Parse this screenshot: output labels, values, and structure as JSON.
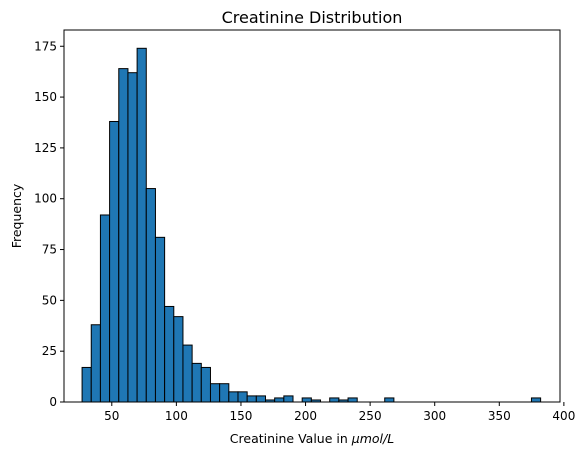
{
  "chart_data": {
    "type": "bar",
    "title": "Creatinine Distribution",
    "xlabel": "Creatinine Value in μmol/L",
    "xlabel_prefix": "Creatinine Value in ",
    "xlabel_math_mu": "μ",
    "xlabel_math_rest": "mol/L",
    "ylabel": "Frequency",
    "xlim": [
      13,
      397
    ],
    "ylim": [
      0,
      183
    ],
    "xticks": [
      50,
      100,
      150,
      200,
      250,
      300,
      350,
      400
    ],
    "yticks": [
      0,
      25,
      50,
      75,
      100,
      125,
      150,
      175
    ],
    "bin_edges": [
      27,
      34.1,
      41.2,
      48.3,
      55.4,
      62.5,
      69.6,
      76.7,
      83.8,
      90.9,
      98.0,
      105.1,
      112.2,
      119.3,
      126.4,
      133.5,
      140.6,
      147.7,
      154.8,
      161.9,
      169.0,
      176.1,
      183.2,
      190.3,
      197.4,
      204.5,
      211.6,
      218.7,
      225.8,
      232.9,
      240.0,
      247.1,
      254.2,
      261.3,
      268.4,
      275.5,
      282.6,
      289.7,
      296.8,
      303.9,
      311.0,
      318.1,
      325.2,
      332.3,
      339.4,
      346.5,
      353.6,
      360.7,
      367.8,
      374.9,
      382.0
    ],
    "counts": [
      17,
      38,
      92,
      138,
      164,
      162,
      174,
      105,
      81,
      47,
      42,
      28,
      19,
      17,
      9,
      9,
      5,
      5,
      3,
      3,
      1,
      2,
      3,
      0,
      2,
      1,
      0,
      2,
      1,
      2,
      0,
      0,
      0,
      2,
      0,
      0,
      0,
      0,
      0,
      0,
      0,
      0,
      0,
      0,
      0,
      0,
      0,
      0,
      0,
      2
    ],
    "bar_color": "#1f77b4",
    "edge_color": "#000000",
    "grid": false
  }
}
